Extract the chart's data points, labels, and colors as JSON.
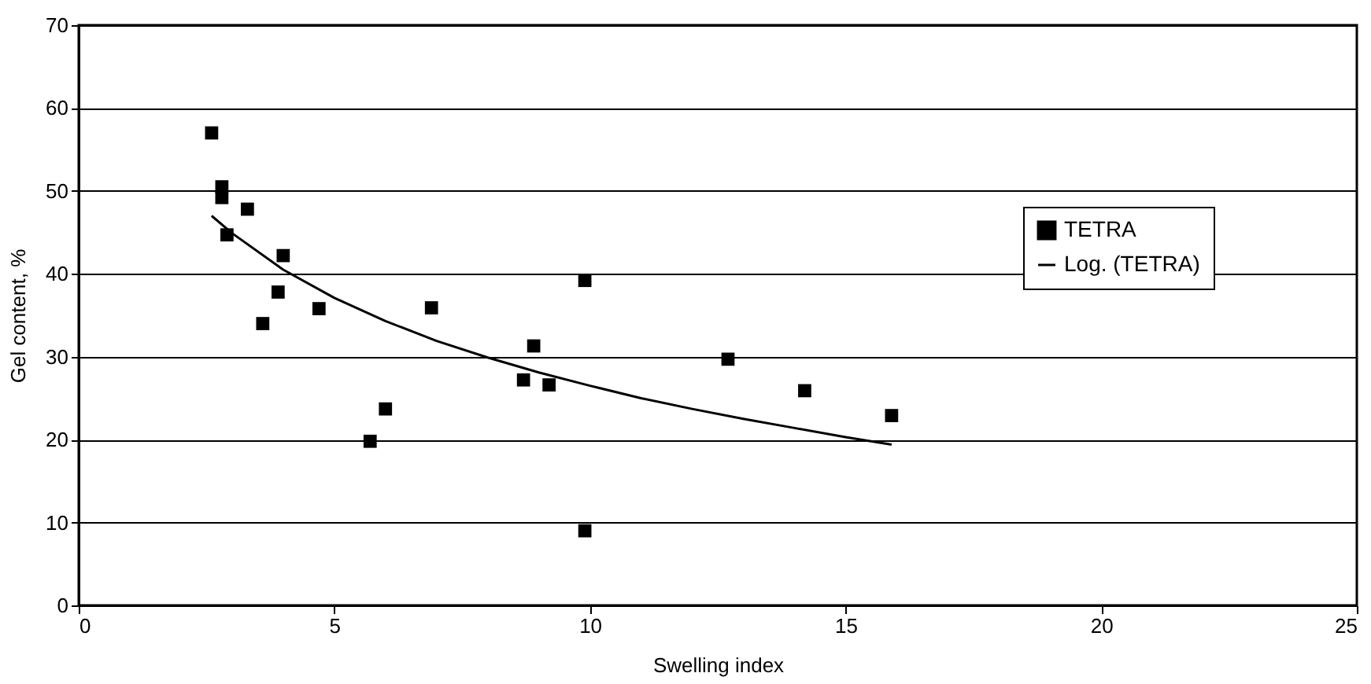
{
  "chart_data": {
    "type": "scatter",
    "xlabel": "Swelling index",
    "ylabel": "Gel content, %",
    "xlim": [
      0,
      25
    ],
    "xticks": [
      0,
      5,
      10,
      15,
      20,
      25
    ],
    "ylim": [
      0,
      70
    ],
    "yticks": [
      0,
      10,
      20,
      30,
      40,
      50,
      60,
      70
    ],
    "grid": "y",
    "legend": "right",
    "series": [
      {
        "name": "TETRA",
        "marker": "square",
        "color": "#000000",
        "x": [
          2.6,
          2.8,
          2.8,
          2.9,
          3.3,
          3.6,
          3.9,
          4.0,
          4.7,
          5.7,
          6.0,
          6.9,
          8.7,
          8.9,
          9.2,
          9.9,
          9.9,
          12.7,
          14.2,
          15.9
        ],
        "values": [
          57,
          50.5,
          49.2,
          44.7,
          47.8,
          34,
          37.8,
          42.2,
          35.8,
          19.8,
          23.7,
          35.9,
          27.2,
          31.3,
          26.6,
          39.2,
          9,
          29.7,
          25.9,
          22.9
        ]
      },
      {
        "name": "Log. (TETRA)",
        "type": "line",
        "line_style": "solid",
        "color": "#000000",
        "x": [
          2.6,
          3,
          4,
          5,
          6,
          7,
          8,
          9,
          10,
          11,
          12,
          13,
          14,
          15,
          15.9
        ],
        "values": [
          47.0,
          44.9,
          40.5,
          37.1,
          34.3,
          31.9,
          29.9,
          28.1,
          26.5,
          25.0,
          23.7,
          22.5,
          21.4,
          20.3,
          19.4
        ]
      }
    ]
  }
}
